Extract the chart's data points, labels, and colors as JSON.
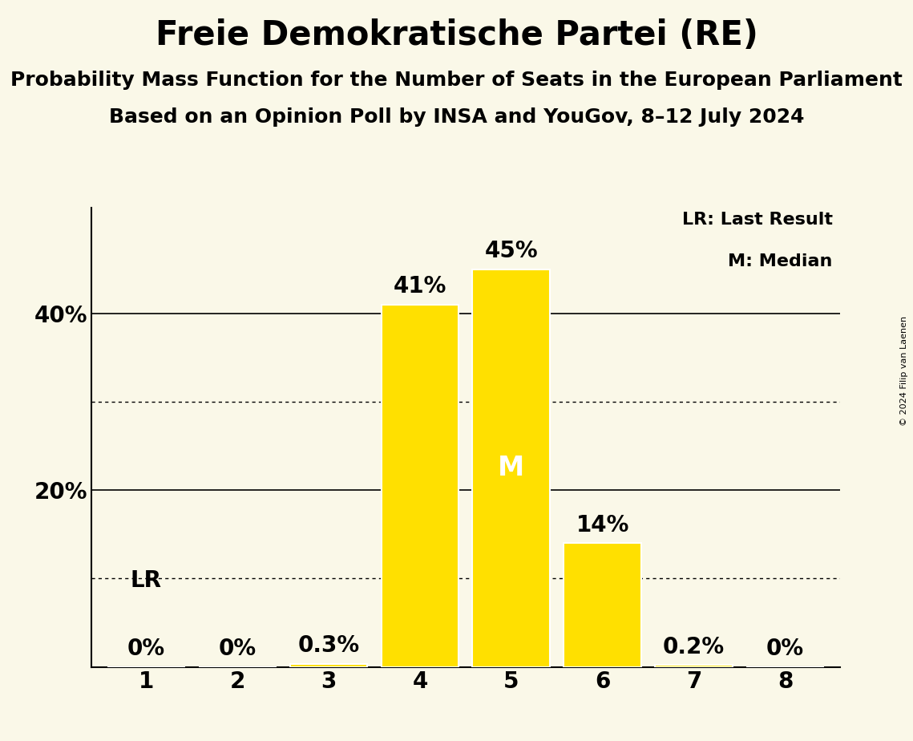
{
  "title": "Freie Demokratische Partei (RE)",
  "subtitle1": "Probability Mass Function for the Number of Seats in the European Parliament",
  "subtitle2": "Based on an Opinion Poll by INSA and YouGov, 8–12 July 2024",
  "copyright": "© 2024 Filip van Laenen",
  "categories": [
    1,
    2,
    3,
    4,
    5,
    6,
    7,
    8
  ],
  "values": [
    0.0,
    0.0,
    0.3,
    41.0,
    45.0,
    14.0,
    0.2,
    0.0
  ],
  "bar_color": "#FFE000",
  "bar_edge_color": "#FFFFFF",
  "background_color": "#FAF8E8",
  "text_color": "#000000",
  "median_seat": 5,
  "last_result_seat": 1,
  "legend_lr": "LR: Last Result",
  "legend_m": "M: Median",
  "dotted_yticks": [
    10,
    30
  ],
  "solid_yticks": [
    20,
    40
  ],
  "ymax": 52,
  "bar_labels": [
    "0%",
    "0%",
    "0.3%",
    "41%",
    "45%",
    "14%",
    "0.2%",
    "0%"
  ],
  "lr_label_text": "LR",
  "title_fontsize": 30,
  "subtitle_fontsize": 18,
  "tick_fontsize": 20,
  "legend_fontsize": 16,
  "bar_label_fontsize": 20,
  "median_label": "M",
  "median_label_fontsize": 24
}
